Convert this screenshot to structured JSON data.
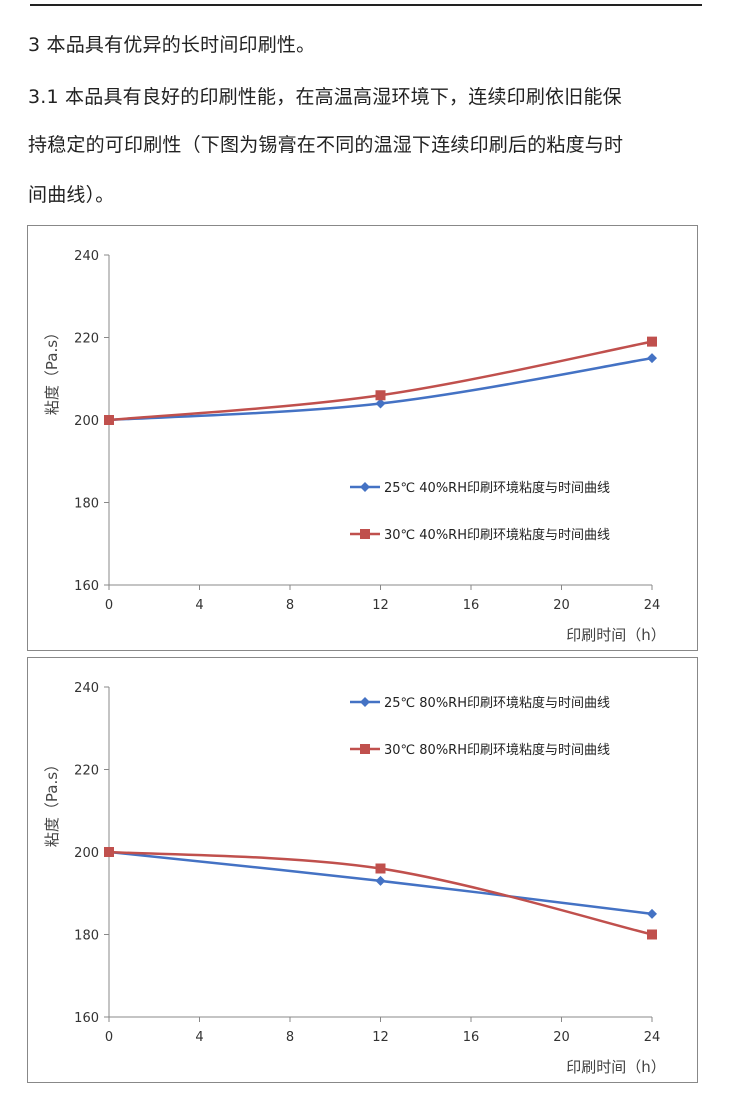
{
  "document": {
    "heading": "3 本品具有优异的长时间印刷性。",
    "paragraph_lines": [
      "3.1 本品具有良好的印刷性能，在高温高湿环境下，连续印刷依旧能保",
      "持稳定的可印刷性（下图为锡膏在不同的温湿下连续印刷后的粘度与时",
      "间曲线）。"
    ]
  },
  "chart_data": [
    {
      "type": "line",
      "xlabel": "印刷时间（h）",
      "ylabel": "粘度（Pa.s）",
      "xlim": [
        0,
        24
      ],
      "ylim": [
        160,
        240
      ],
      "xticks": [
        "0",
        "4",
        "8",
        "12",
        "16",
        "20",
        "24"
      ],
      "yticks": [
        "160",
        "180",
        "200",
        "220",
        "240"
      ],
      "grid": false,
      "legend_placement": "center-right",
      "series": [
        {
          "name": "25℃ 40%RH印刷环境粘度与时间曲线",
          "color": "#4472C4",
          "marker": "diamond",
          "x": [
            0,
            12,
            24
          ],
          "y": [
            200,
            204,
            215
          ]
        },
        {
          "name": "30℃ 40%RH印刷环境粘度与时间曲线",
          "color": "#C0504D",
          "marker": "square",
          "x": [
            0,
            12,
            24
          ],
          "y": [
            200,
            206,
            219
          ]
        }
      ]
    },
    {
      "type": "line",
      "xlabel": "印刷时间（h）",
      "ylabel": "粘度（Pa.s）",
      "xlim": [
        0,
        24
      ],
      "ylim": [
        160,
        240
      ],
      "xticks": [
        "0",
        "4",
        "8",
        "12",
        "16",
        "20",
        "24"
      ],
      "yticks": [
        "160",
        "180",
        "200",
        "220",
        "240"
      ],
      "grid": false,
      "legend_placement": "top-right",
      "series": [
        {
          "name": "25℃ 80%RH印刷环境粘度与时间曲线",
          "color": "#4472C4",
          "marker": "diamond",
          "x": [
            0,
            12,
            24
          ],
          "y": [
            200,
            193,
            185
          ]
        },
        {
          "name": "30℃ 80%RH印刷环境粘度与时间曲线",
          "color": "#C0504D",
          "marker": "square",
          "x": [
            0,
            12,
            24
          ],
          "y": [
            200,
            196,
            180
          ]
        }
      ]
    }
  ]
}
